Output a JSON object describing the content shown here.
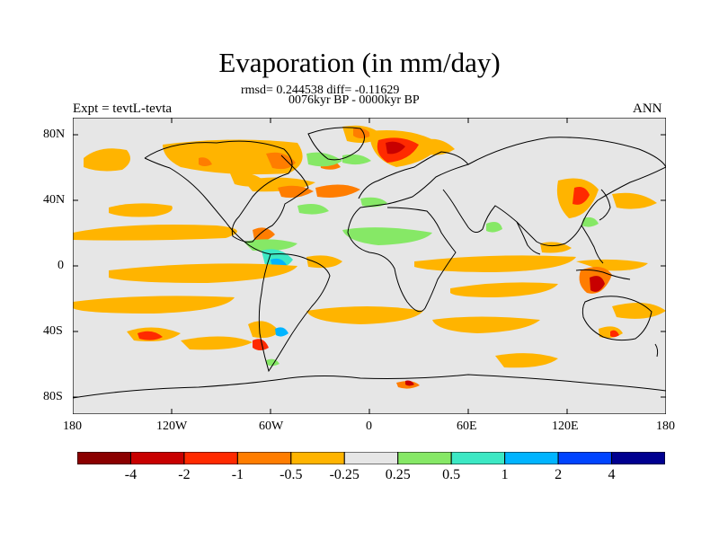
{
  "title": "Evaporation (in mm/day)",
  "stats_line": "rmsd= 0.244538 diff= -0.11629",
  "period_line": "0076kyr BP - 0000kyr BP",
  "experiment_label": "Expt = tevtL-tevta",
  "season_label": "ANN",
  "lat_ticks": [
    "80N",
    "40N",
    "0",
    "40S",
    "80S"
  ],
  "lon_ticks": [
    "180",
    "120W",
    "60W",
    "0",
    "60E",
    "120E",
    "180"
  ],
  "colorbar": {
    "colors": [
      "#8b0000",
      "#c80000",
      "#ff2a00",
      "#ff7d00",
      "#ffb400",
      "#e6e6e6",
      "#86e866",
      "#3ce8c4",
      "#00b4ff",
      "#0044ff",
      "#000090"
    ],
    "labels": [
      "-4",
      "-2",
      "-1",
      "-0.5",
      "-0.25",
      "0.25",
      "0.5",
      "1",
      "2",
      "4"
    ]
  }
}
